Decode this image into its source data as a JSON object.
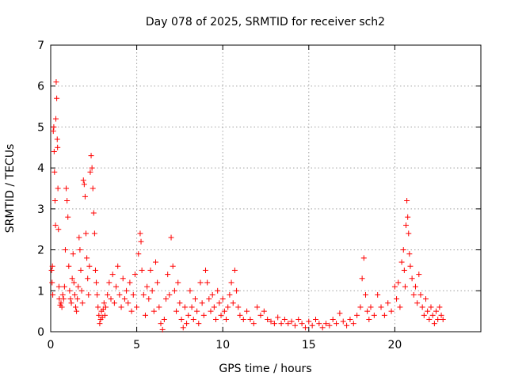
{
  "chart_data": {
    "type": "scatter",
    "title": "Day 078 of 2025, SRMTID for receiver sch2",
    "xlabel": "GPS time / hours",
    "ylabel": "SRMTID / TECUs",
    "xlim": [
      0,
      25
    ],
    "ylim": [
      0,
      7
    ],
    "xticks": [
      0,
      5,
      10,
      15,
      20
    ],
    "yticks": [
      0,
      1,
      2,
      3,
      4,
      5,
      6,
      7
    ],
    "grid": true,
    "marker": "+",
    "color": "#ff0000",
    "series": [
      {
        "name": "sch2",
        "points": [
          [
            0.05,
            1.5
          ],
          [
            0.08,
            1.2
          ],
          [
            0.1,
            1.6
          ],
          [
            0.12,
            0.9
          ],
          [
            0.15,
            4.9
          ],
          [
            0.18,
            5.0
          ],
          [
            0.2,
            4.4
          ],
          [
            0.22,
            3.9
          ],
          [
            0.25,
            3.2
          ],
          [
            0.28,
            2.6
          ],
          [
            0.3,
            5.2
          ],
          [
            0.32,
            6.1
          ],
          [
            0.35,
            5.7
          ],
          [
            0.38,
            4.7
          ],
          [
            0.4,
            4.5
          ],
          [
            0.42,
            3.5
          ],
          [
            0.45,
            2.5
          ],
          [
            0.48,
            1.1
          ],
          [
            0.5,
            0.8
          ],
          [
            0.55,
            0.65
          ],
          [
            0.6,
            0.7
          ],
          [
            0.65,
            0.6
          ],
          [
            0.7,
            0.9
          ],
          [
            0.75,
            0.8
          ],
          [
            0.8,
            1.1
          ],
          [
            0.85,
            2.0
          ],
          [
            0.9,
            3.5
          ],
          [
            0.95,
            3.2
          ],
          [
            1.0,
            2.8
          ],
          [
            1.05,
            1.6
          ],
          [
            1.1,
            1.0
          ],
          [
            1.15,
            0.8
          ],
          [
            1.2,
            0.7
          ],
          [
            1.25,
            1.3
          ],
          [
            1.3,
            1.9
          ],
          [
            1.35,
            1.2
          ],
          [
            1.4,
            0.9
          ],
          [
            1.45,
            0.6
          ],
          [
            1.5,
            0.5
          ],
          [
            1.55,
            0.8
          ],
          [
            1.6,
            1.1
          ],
          [
            1.65,
            2.3
          ],
          [
            1.7,
            2.0
          ],
          [
            1.75,
            1.5
          ],
          [
            1.8,
            1.0
          ],
          [
            1.85,
            0.7
          ],
          [
            1.9,
            3.7
          ],
          [
            1.95,
            3.6
          ],
          [
            2.0,
            3.3
          ],
          [
            2.05,
            2.4
          ],
          [
            2.1,
            1.8
          ],
          [
            2.15,
            1.3
          ],
          [
            2.2,
            0.9
          ],
          [
            2.25,
            1.6
          ],
          [
            2.3,
            3.9
          ],
          [
            2.35,
            4.3
          ],
          [
            2.4,
            4.0
          ],
          [
            2.45,
            3.5
          ],
          [
            2.5,
            2.9
          ],
          [
            2.55,
            2.4
          ],
          [
            2.6,
            1.5
          ],
          [
            2.65,
            1.2
          ],
          [
            2.7,
            0.9
          ],
          [
            2.75,
            0.6
          ],
          [
            2.8,
            0.4
          ],
          [
            2.85,
            0.2
          ],
          [
            2.9,
            0.3
          ],
          [
            2.95,
            0.5
          ],
          [
            3.0,
            0.35
          ],
          [
            3.05,
            0.55
          ],
          [
            3.1,
            0.7
          ],
          [
            3.15,
            0.4
          ],
          [
            3.2,
            0.6
          ],
          [
            3.3,
            0.9
          ],
          [
            3.4,
            1.2
          ],
          [
            3.5,
            0.8
          ],
          [
            3.6,
            1.4
          ],
          [
            3.7,
            0.7
          ],
          [
            3.8,
            1.1
          ],
          [
            3.9,
            1.6
          ],
          [
            4.0,
            0.9
          ],
          [
            4.1,
            0.6
          ],
          [
            4.2,
            1.3
          ],
          [
            4.3,
            0.8
          ],
          [
            4.4,
            1.0
          ],
          [
            4.5,
            0.7
          ],
          [
            4.6,
            1.2
          ],
          [
            4.7,
            0.5
          ],
          [
            4.8,
            0.9
          ],
          [
            4.9,
            1.4
          ],
          [
            5.0,
            0.6
          ],
          [
            5.1,
            1.9
          ],
          [
            5.2,
            2.4
          ],
          [
            5.25,
            2.2
          ],
          [
            5.3,
            1.5
          ],
          [
            5.4,
            0.9
          ],
          [
            5.5,
            0.4
          ],
          [
            5.6,
            1.1
          ],
          [
            5.7,
            0.8
          ],
          [
            5.8,
            1.5
          ],
          [
            5.9,
            1.0
          ],
          [
            6.0,
            0.5
          ],
          [
            6.1,
            1.7
          ],
          [
            6.2,
            1.2
          ],
          [
            6.3,
            0.6
          ],
          [
            6.4,
            0.2
          ],
          [
            6.5,
            0.05
          ],
          [
            6.6,
            0.3
          ],
          [
            6.7,
            0.8
          ],
          [
            6.8,
            1.4
          ],
          [
            6.9,
            0.9
          ],
          [
            7.0,
            2.3
          ],
          [
            7.1,
            1.6
          ],
          [
            7.2,
            1.0
          ],
          [
            7.3,
            0.5
          ],
          [
            7.4,
            1.2
          ],
          [
            7.5,
            0.7
          ],
          [
            7.6,
            0.3
          ],
          [
            7.7,
            0.1
          ],
          [
            7.8,
            0.6
          ],
          [
            7.9,
            0.2
          ],
          [
            8.0,
            0.4
          ],
          [
            8.1,
            1.0
          ],
          [
            8.2,
            0.6
          ],
          [
            8.3,
            0.3
          ],
          [
            8.4,
            0.8
          ],
          [
            8.5,
            0.5
          ],
          [
            8.6,
            0.2
          ],
          [
            8.7,
            1.2
          ],
          [
            8.8,
            0.7
          ],
          [
            8.9,
            0.4
          ],
          [
            9.0,
            1.5
          ],
          [
            9.1,
            1.2
          ],
          [
            9.2,
            0.8
          ],
          [
            9.3,
            0.5
          ],
          [
            9.4,
            0.9
          ],
          [
            9.5,
            0.6
          ],
          [
            9.6,
            0.3
          ],
          [
            9.7,
            1.0
          ],
          [
            9.8,
            0.7
          ],
          [
            9.9,
            0.4
          ],
          [
            10.0,
            0.8
          ],
          [
            10.1,
            0.5
          ],
          [
            10.2,
            0.3
          ],
          [
            10.3,
            0.6
          ],
          [
            10.4,
            0.9
          ],
          [
            10.5,
            1.2
          ],
          [
            10.6,
            0.7
          ],
          [
            10.7,
            1.5
          ],
          [
            10.8,
            1.0
          ],
          [
            10.9,
            0.6
          ],
          [
            11.0,
            0.4
          ],
          [
            11.2,
            0.3
          ],
          [
            11.4,
            0.5
          ],
          [
            11.6,
            0.3
          ],
          [
            11.8,
            0.2
          ],
          [
            12.0,
            0.6
          ],
          [
            12.2,
            0.4
          ],
          [
            12.4,
            0.5
          ],
          [
            12.6,
            0.3
          ],
          [
            12.8,
            0.25
          ],
          [
            13.0,
            0.2
          ],
          [
            13.2,
            0.35
          ],
          [
            13.4,
            0.2
          ],
          [
            13.6,
            0.3
          ],
          [
            13.8,
            0.2
          ],
          [
            14.0,
            0.25
          ],
          [
            14.2,
            0.15
          ],
          [
            14.4,
            0.3
          ],
          [
            14.6,
            0.2
          ],
          [
            14.8,
            0.1
          ],
          [
            15.0,
            0.25
          ],
          [
            15.2,
            0.15
          ],
          [
            15.4,
            0.3
          ],
          [
            15.6,
            0.2
          ],
          [
            15.8,
            0.1
          ],
          [
            16.0,
            0.2
          ],
          [
            16.2,
            0.15
          ],
          [
            16.4,
            0.3
          ],
          [
            16.6,
            0.2
          ],
          [
            16.8,
            0.45
          ],
          [
            17.0,
            0.25
          ],
          [
            17.2,
            0.15
          ],
          [
            17.4,
            0.3
          ],
          [
            17.6,
            0.2
          ],
          [
            17.8,
            0.4
          ],
          [
            18.0,
            0.6
          ],
          [
            18.1,
            1.3
          ],
          [
            18.2,
            1.8
          ],
          [
            18.3,
            0.9
          ],
          [
            18.4,
            0.5
          ],
          [
            18.5,
            0.3
          ],
          [
            18.6,
            0.6
          ],
          [
            18.8,
            0.4
          ],
          [
            19.0,
            0.9
          ],
          [
            19.2,
            0.6
          ],
          [
            19.4,
            0.4
          ],
          [
            19.6,
            0.7
          ],
          [
            19.8,
            0.5
          ],
          [
            20.0,
            1.1
          ],
          [
            20.1,
            0.8
          ],
          [
            20.2,
            1.2
          ],
          [
            20.3,
            0.6
          ],
          [
            20.4,
            1.7
          ],
          [
            20.5,
            2.0
          ],
          [
            20.55,
            1.5
          ],
          [
            20.6,
            1.1
          ],
          [
            20.65,
            2.6
          ],
          [
            20.7,
            3.2
          ],
          [
            20.75,
            2.8
          ],
          [
            20.8,
            2.4
          ],
          [
            20.85,
            1.9
          ],
          [
            20.9,
            1.6
          ],
          [
            21.0,
            1.3
          ],
          [
            21.1,
            0.9
          ],
          [
            21.2,
            1.1
          ],
          [
            21.3,
            0.7
          ],
          [
            21.4,
            1.4
          ],
          [
            21.5,
            0.9
          ],
          [
            21.6,
            0.6
          ],
          [
            21.7,
            0.4
          ],
          [
            21.8,
            0.8
          ],
          [
            21.9,
            0.5
          ],
          [
            22.0,
            0.3
          ],
          [
            22.1,
            0.6
          ],
          [
            22.2,
            0.4
          ],
          [
            22.3,
            0.2
          ],
          [
            22.4,
            0.5
          ],
          [
            22.5,
            0.3
          ],
          [
            22.6,
            0.6
          ],
          [
            22.7,
            0.4
          ],
          [
            22.8,
            0.3
          ]
        ]
      }
    ]
  }
}
